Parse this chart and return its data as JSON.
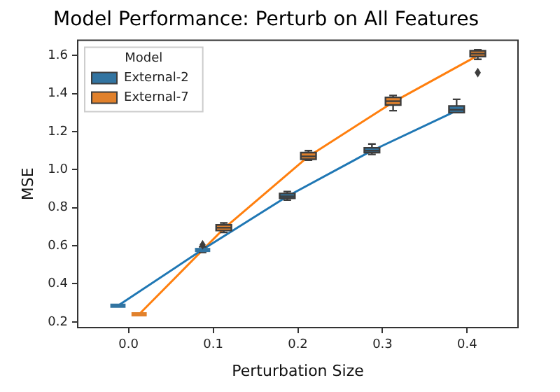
{
  "chart_data": {
    "type": "box",
    "title": "Model Performance: Perturb on All Features",
    "xlabel": "Perturbation Size",
    "ylabel": "MSE",
    "legend_title": "Model",
    "legend": "top left",
    "grid": false,
    "marker": "none",
    "xlim": [
      -0.06,
      0.46
    ],
    "xticks": [
      {
        "value": 0,
        "label": "0.0"
      },
      0.1,
      0.2,
      0.3,
      0.4
    ],
    "ylim": [
      0.17,
      1.68
    ],
    "yticks": [
      0.2,
      0.4,
      0.6,
      0.8,
      {
        "value": 1,
        "label": "1.0"
      },
      1.2,
      1.4,
      1.6
    ],
    "series": [
      {
        "type": "box",
        "name": "External-2",
        "color": "#3274a1",
        "x": [
          -0.0125,
          0.0875,
          0.1875,
          0.2875,
          0.3875
        ],
        "boxes": [
          {
            "low": 0.285,
            "q1": 0.285,
            "median": 0.285,
            "q3": 0.285,
            "high": 0.285
          },
          {
            "low": 0.565,
            "q1": 0.57,
            "median": 0.578,
            "q3": 0.585,
            "high": 0.595,
            "outliers": [
              0.605
            ]
          },
          {
            "low": 0.84,
            "q1": 0.85,
            "median": 0.86,
            "q3": 0.875,
            "high": 0.885
          },
          {
            "low": 1.08,
            "q1": 1.09,
            "median": 1.1,
            "q3": 1.115,
            "high": 1.135
          },
          {
            "low": 1.3,
            "q1": 1.3,
            "median": 1.315,
            "q3": 1.335,
            "high": 1.37
          }
        ]
      },
      {
        "type": "box",
        "name": "External-7",
        "color": "#e1812c",
        "x": [
          0.0125,
          0.1125,
          0.2125,
          0.3125,
          0.4125
        ],
        "boxes": [
          {
            "low": 0.24,
            "q1": 0.24,
            "median": 0.24,
            "q3": 0.24,
            "high": 0.24
          },
          {
            "low": 0.67,
            "q1": 0.68,
            "median": 0.695,
            "q3": 0.71,
            "high": 0.72
          },
          {
            "low": 1.05,
            "q1": 1.055,
            "median": 1.07,
            "q3": 1.09,
            "high": 1.1
          },
          {
            "low": 1.31,
            "q1": 1.34,
            "median": 1.36,
            "q3": 1.38,
            "high": 1.39
          },
          {
            "low": 1.58,
            "q1": 1.595,
            "median": 1.61,
            "q3": 1.625,
            "high": 1.63,
            "outliers": [
              1.51
            ]
          }
        ]
      },
      {
        "type": "line",
        "color": "#1f77b4",
        "x": [
          -0.0125,
          0.0875,
          0.1875,
          0.2875,
          0.3875
        ],
        "values": [
          0.285,
          0.58,
          0.86,
          1.1,
          1.31
        ]
      },
      {
        "type": "line",
        "color": "#ff7f0e",
        "x": [
          0.0125,
          0.1125,
          0.2125,
          0.3125,
          0.4125
        ],
        "values": [
          0.24,
          0.69,
          1.07,
          1.355,
          1.6
        ]
      }
    ]
  }
}
